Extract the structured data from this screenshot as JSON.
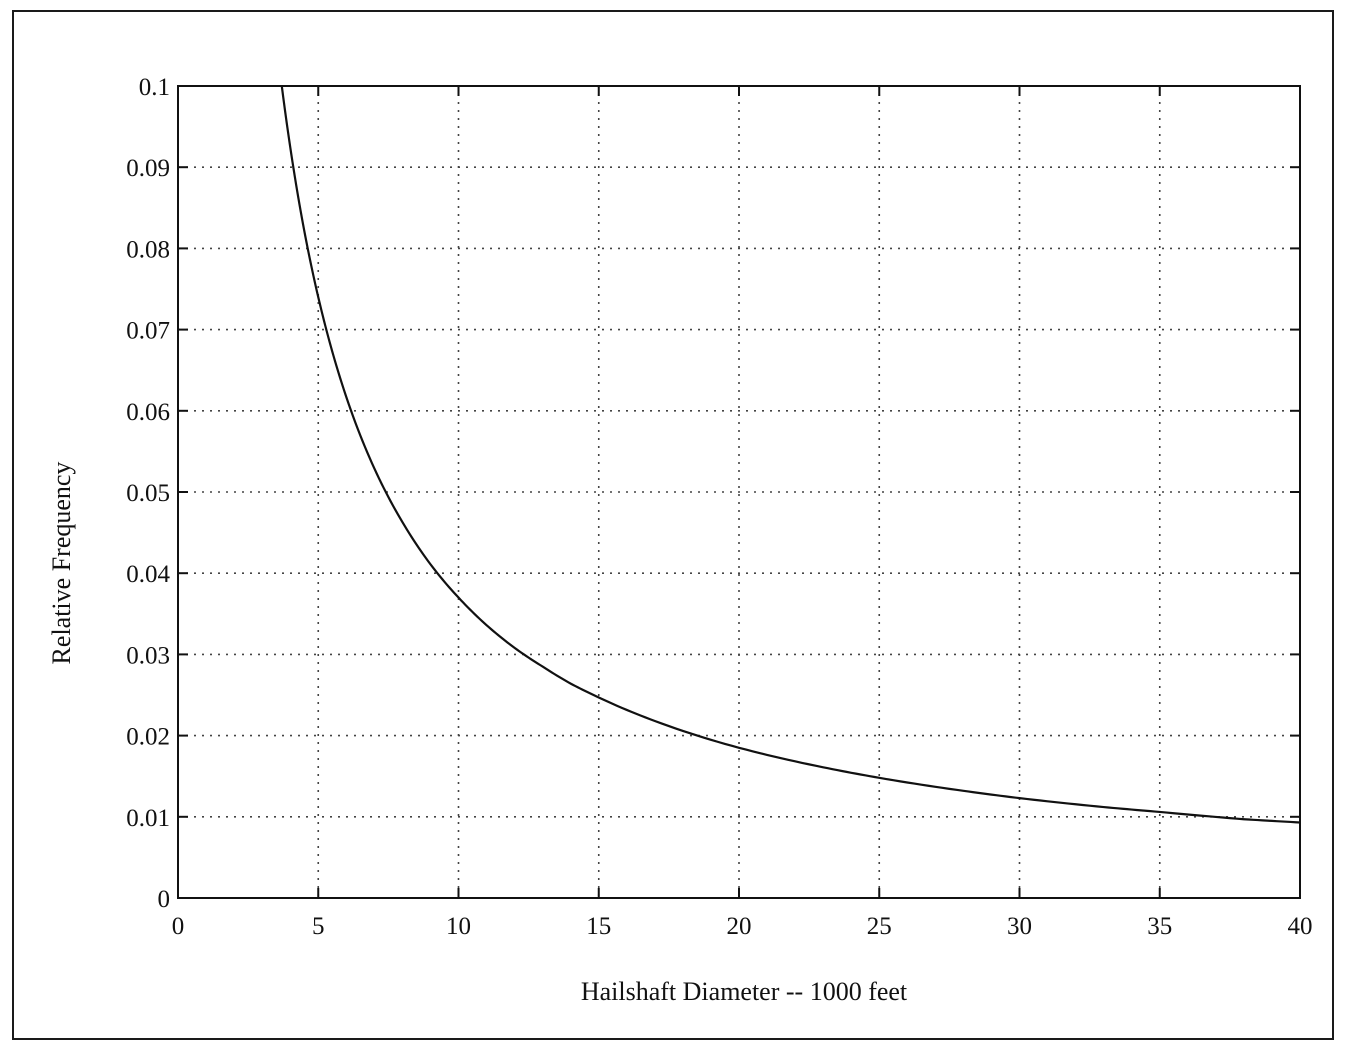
{
  "chart_data": {
    "type": "line",
    "title": "",
    "xlabel": "Hailshaft Diameter -- 1000 feet",
    "ylabel": "Relative Frequency",
    "xlim": [
      0,
      40
    ],
    "ylim": [
      0,
      0.1
    ],
    "grid": true,
    "x_ticks": [
      0,
      5,
      10,
      15,
      20,
      25,
      30,
      35,
      40
    ],
    "x_tick_labels": [
      "0",
      "5",
      "10",
      "15",
      "20",
      "25",
      "30",
      "35",
      "40"
    ],
    "y_ticks": [
      0,
      0.01,
      0.02,
      0.03,
      0.04,
      0.05,
      0.06,
      0.07,
      0.08,
      0.09,
      0.1
    ],
    "y_tick_labels": [
      "0",
      "0.01",
      "0.02",
      "0.03",
      "0.04",
      "0.05",
      "0.06",
      "0.07",
      "0.08",
      "0.09",
      "0.1"
    ],
    "series": [
      {
        "x": [
          3.7,
          4,
          4.5,
          5,
          5.5,
          6,
          7,
          8,
          9,
          10,
          11,
          12,
          13,
          14,
          15,
          17,
          20,
          23,
          25,
          28,
          30,
          33,
          35,
          38,
          40
        ],
        "y": [
          0.1,
          0.0925,
          0.0822,
          0.074,
          0.0673,
          0.0617,
          0.0529,
          0.0463,
          0.0411,
          0.037,
          0.0336,
          0.0308,
          0.0285,
          0.0264,
          0.0247,
          0.0218,
          0.0185,
          0.0161,
          0.0148,
          0.0132,
          0.0123,
          0.0112,
          0.0106,
          0.0097,
          0.0093
        ]
      }
    ]
  }
}
